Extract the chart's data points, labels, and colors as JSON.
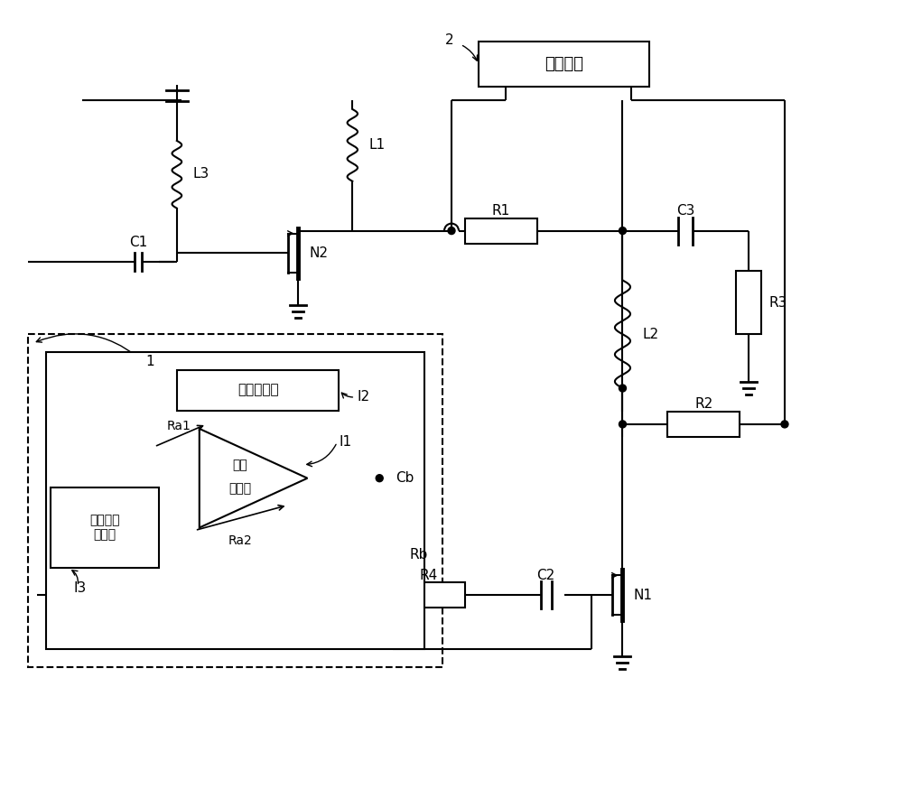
{
  "bg": "#ffffff",
  "lc": "#000000",
  "lw": 1.5,
  "supply_label": "供电模块",
  "neg_volt_label": "负压发生器",
  "ref_volt_label": "基准电压\n发生器",
  "op_amp_line1": "运算",
  "op_amp_line2": "放大器",
  "labels": [
    "L1",
    "L2",
    "L3",
    "C1",
    "C2",
    "C3",
    "Cb",
    "R1",
    "R2",
    "R3",
    "R4",
    "Ra1",
    "Ra2",
    "Rb",
    "N1",
    "N2",
    "1",
    "2",
    "I1",
    "I2",
    "I3"
  ]
}
